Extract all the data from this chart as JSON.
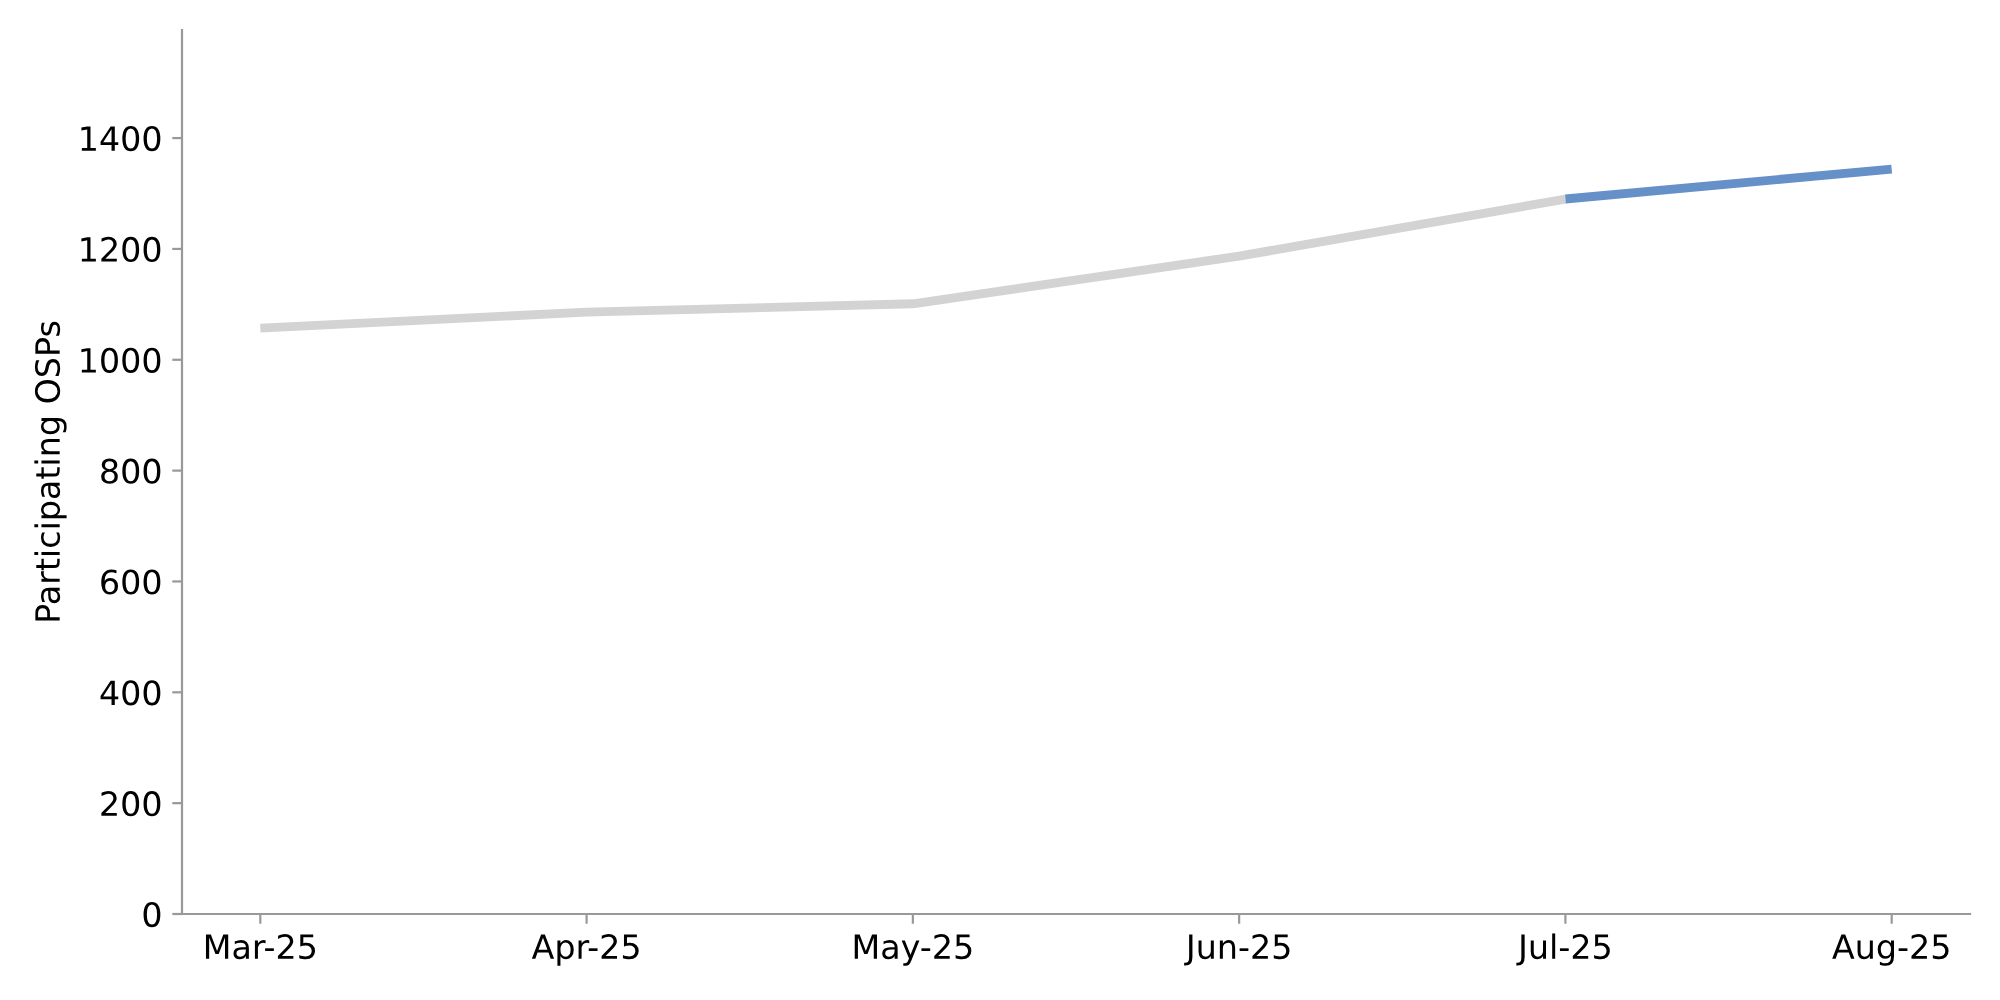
{
  "chart_data": {
    "type": "line",
    "ylabel": "Participating OSPs",
    "categories": [
      "Mar-25",
      "Apr-25",
      "May-25",
      "Jun-25",
      "Jul-25",
      "Aug-25"
    ],
    "series": [
      {
        "color": "#d3d3d3",
        "values": [
          1057,
          1086,
          1101,
          1187,
          1290,
          null
        ]
      },
      {
        "color": "#6690c8",
        "values": [
          null,
          null,
          null,
          null,
          1290,
          1344
        ]
      }
    ],
    "ylim": [
      0,
      1595
    ],
    "yticks": [
      0,
      200,
      400,
      600,
      800,
      1000,
      1200,
      1400
    ],
    "marker": "none",
    "line_style": "solid"
  }
}
